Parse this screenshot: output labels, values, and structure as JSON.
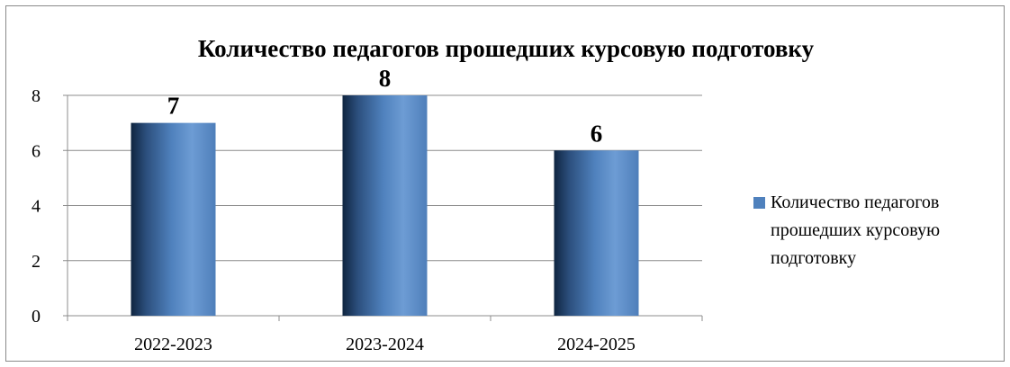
{
  "chart_data": {
    "type": "bar",
    "title": "Количество педагогов  прошедших курсовую подготовку",
    "categories": [
      "2022-2023",
      "2023-2024",
      "2024-2025"
    ],
    "series": [
      {
        "name": "Количество педагогов прошедших курсовую подготовку",
        "values": [
          7,
          8,
          6
        ],
        "color": "#4f81bd"
      }
    ],
    "data_labels": [
      "7",
      "8",
      "6"
    ],
    "y_ticks": [
      "0",
      "2",
      "4",
      "6",
      "8"
    ],
    "ylim": [
      0,
      8
    ],
    "grid": true,
    "legend_position": "right",
    "xlabel": "",
    "ylabel": ""
  }
}
